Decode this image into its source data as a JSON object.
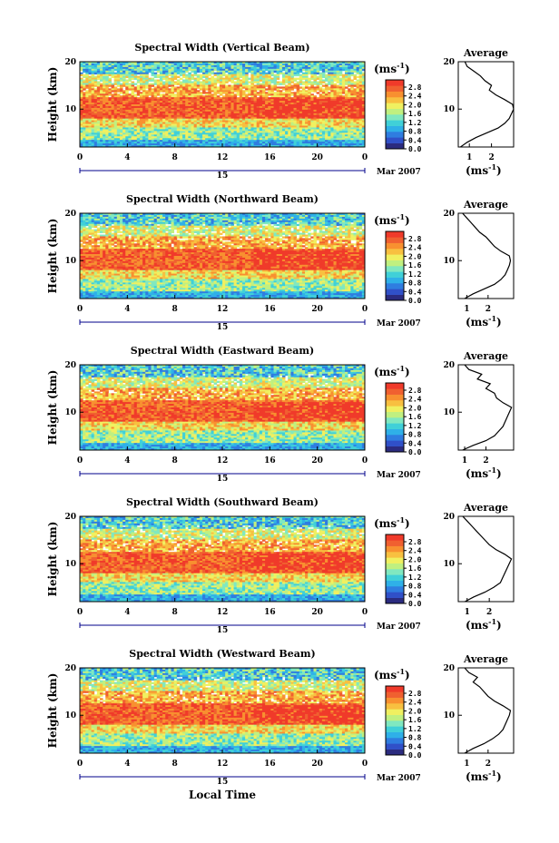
{
  "shared": {
    "ylabel": "Height (km)",
    "xlabel": "Local Time",
    "x_ticks": [
      "0",
      "4",
      "8",
      "12",
      "16",
      "20",
      "0"
    ],
    "y_ticks": [
      "20",
      "10"
    ],
    "date_day": "15",
    "date_month": "Mar 2007",
    "unit": "(ms",
    "unit_exp": "-1",
    "unit_close": ")",
    "colorbar_ticks": [
      "2.8",
      "2.4",
      "2.0",
      "1.6",
      "1.2",
      "0.8",
      "0.4",
      "0.0"
    ],
    "colors": [
      "#2b2b7f",
      "#3050c8",
      "#2f7de0",
      "#2fb0e8",
      "#40d0d8",
      "#80e8c0",
      "#c0f080",
      "#f0f060",
      "#f8c040",
      "#f89030",
      "#f06030",
      "#f03a2a"
    ],
    "avg_title": "Average",
    "avg_unit": "(ms",
    "avg_unit_exp": "-1",
    "avg_unit_close": ")",
    "avg_y_ticks": [
      "20",
      "10"
    ]
  },
  "chart_data": [
    {
      "type": "heatmap",
      "title": "Spectral Width (Vertical Beam)",
      "x_range_hours": [
        0,
        24
      ],
      "y_range_km": [
        2,
        20
      ],
      "z_range_ms": [
        0.0,
        2.8
      ],
      "avg_x_ticks": [
        "1",
        "2"
      ],
      "avg_x_range": [
        0.5,
        3.0
      ],
      "average_profile": [
        [
          0.6,
          2
        ],
        [
          0.9,
          3
        ],
        [
          1.3,
          4
        ],
        [
          1.8,
          5
        ],
        [
          2.3,
          6
        ],
        [
          2.6,
          7
        ],
        [
          2.8,
          8
        ],
        [
          2.9,
          9
        ],
        [
          3.0,
          10
        ],
        [
          2.95,
          11
        ],
        [
          2.6,
          12
        ],
        [
          2.2,
          13
        ],
        [
          1.9,
          14
        ],
        [
          2.0,
          15
        ],
        [
          1.7,
          16
        ],
        [
          1.5,
          17
        ],
        [
          1.2,
          18
        ],
        [
          0.9,
          19
        ],
        [
          0.8,
          20
        ]
      ]
    },
    {
      "type": "heatmap",
      "title": "Spectral Width (Northward Beam)",
      "x_range_hours": [
        0,
        24
      ],
      "y_range_km": [
        2,
        20
      ],
      "z_range_ms": [
        0.0,
        2.8
      ],
      "avg_x_ticks": [
        "1",
        "2"
      ],
      "avg_x_range": [
        0.6,
        3.2
      ],
      "average_profile": [
        [
          0.9,
          2
        ],
        [
          1.3,
          3
        ],
        [
          1.8,
          4
        ],
        [
          2.3,
          5
        ],
        [
          2.6,
          6
        ],
        [
          2.8,
          7
        ],
        [
          2.9,
          8
        ],
        [
          3.0,
          9
        ],
        [
          3.05,
          10
        ],
        [
          3.0,
          11
        ],
        [
          2.6,
          12
        ],
        [
          2.3,
          13
        ],
        [
          2.1,
          14
        ],
        [
          1.9,
          15
        ],
        [
          1.6,
          16
        ],
        [
          1.4,
          17
        ],
        [
          1.2,
          18
        ],
        [
          1.0,
          19
        ],
        [
          0.8,
          20
        ]
      ]
    },
    {
      "type": "heatmap",
      "title": "Spectral Width (Eastward Beam)",
      "x_range_hours": [
        0,
        24
      ],
      "y_range_km": [
        2,
        20
      ],
      "z_range_ms": [
        0.0,
        2.8
      ],
      "avg_x_ticks": [
        "1",
        "2"
      ],
      "avg_x_range": [
        0.7,
        3.3
      ],
      "average_profile": [
        [
          0.9,
          2
        ],
        [
          1.4,
          3
        ],
        [
          2.0,
          4
        ],
        [
          2.4,
          5
        ],
        [
          2.6,
          6
        ],
        [
          2.8,
          7
        ],
        [
          2.9,
          8
        ],
        [
          3.0,
          9
        ],
        [
          3.1,
          10
        ],
        [
          3.2,
          11
        ],
        [
          2.8,
          12
        ],
        [
          2.5,
          13
        ],
        [
          2.4,
          14
        ],
        [
          2.0,
          15
        ],
        [
          2.2,
          16
        ],
        [
          1.6,
          17
        ],
        [
          1.8,
          18
        ],
        [
          1.2,
          19
        ],
        [
          1.0,
          20
        ]
      ]
    },
    {
      "type": "heatmap",
      "title": "Spectral Width (Southward Beam)",
      "x_range_hours": [
        0,
        24
      ],
      "y_range_km": [
        2,
        20
      ],
      "z_range_ms": [
        0.0,
        2.8
      ],
      "avg_x_ticks": [
        "1",
        "2"
      ],
      "avg_x_range": [
        0.6,
        3.1
      ],
      "average_profile": [
        [
          0.9,
          2
        ],
        [
          1.3,
          3
        ],
        [
          1.8,
          4
        ],
        [
          2.2,
          5
        ],
        [
          2.5,
          6
        ],
        [
          2.6,
          7
        ],
        [
          2.7,
          8
        ],
        [
          2.8,
          9
        ],
        [
          2.9,
          10
        ],
        [
          3.0,
          11
        ],
        [
          2.7,
          12
        ],
        [
          2.3,
          13
        ],
        [
          2.0,
          14
        ],
        [
          1.8,
          15
        ],
        [
          1.6,
          16
        ],
        [
          1.4,
          17
        ],
        [
          1.2,
          18
        ],
        [
          1.0,
          19
        ],
        [
          0.8,
          20
        ]
      ]
    },
    {
      "type": "heatmap",
      "title": "Spectral Width (Westward Beam)",
      "x_range_hours": [
        0,
        24
      ],
      "y_range_km": [
        2,
        20
      ],
      "z_range_ms": [
        0.0,
        2.8
      ],
      "avg_x_ticks": [
        "1",
        "2"
      ],
      "avg_x_range": [
        0.6,
        3.2
      ],
      "average_profile": [
        [
          0.9,
          2
        ],
        [
          1.3,
          3
        ],
        [
          1.8,
          4
        ],
        [
          2.2,
          5
        ],
        [
          2.5,
          6
        ],
        [
          2.7,
          7
        ],
        [
          2.8,
          8
        ],
        [
          2.9,
          9
        ],
        [
          3.0,
          10
        ],
        [
          3.05,
          11
        ],
        [
          2.7,
          12
        ],
        [
          2.3,
          13
        ],
        [
          2.0,
          14
        ],
        [
          1.8,
          15
        ],
        [
          1.6,
          16
        ],
        [
          1.3,
          17
        ],
        [
          1.5,
          18
        ],
        [
          1.1,
          19
        ],
        [
          0.9,
          20
        ]
      ]
    }
  ]
}
